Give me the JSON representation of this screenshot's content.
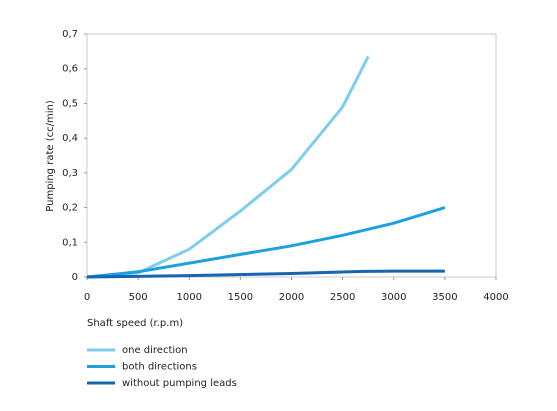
{
  "chart_data": {
    "type": "line",
    "x_label": "Shaft speed  (r.p.m)",
    "y_label": "Pumping rate  (cc/min)",
    "xlim": [
      0,
      4000
    ],
    "xticks": [
      0,
      500,
      1000,
      1500,
      2000,
      2500,
      3000,
      3500,
      4000
    ],
    "ylim": [
      0,
      0.7
    ],
    "yticks": [
      0,
      {
        "value": 0.1,
        "label": "0,1"
      },
      {
        "value": 0.2,
        "label": "0,2"
      },
      {
        "value": 0.3,
        "label": "0,3"
      },
      {
        "value": 0.4,
        "label": "0,4"
      },
      {
        "value": 0.5,
        "label": "0,5"
      },
      {
        "value": 0.6,
        "label": "0,6"
      },
      {
        "value": 0.7,
        "label": "0,7"
      }
    ],
    "series": [
      {
        "name": "one direction",
        "color": "#7fcdee",
        "x": [
          0,
          500,
          1000,
          1500,
          2000,
          2500,
          2750
        ],
        "values": [
          0,
          0.012,
          0.08,
          0.19,
          0.31,
          0.49,
          0.635
        ]
      },
      {
        "name": "both directions",
        "color": "#1ea0e0",
        "x": [
          0,
          500,
          1000,
          1500,
          2000,
          2500,
          3000,
          3500
        ],
        "values": [
          0,
          0.015,
          0.04,
          0.065,
          0.09,
          0.12,
          0.155,
          0.2
        ]
      },
      {
        "name": "without pumping leads",
        "color": "#1565b0",
        "x": [
          0,
          1000,
          2000,
          2700,
          3000,
          3500
        ],
        "values": [
          0,
          0.004,
          0.01,
          0.016,
          0.017,
          0.017
        ]
      }
    ]
  }
}
